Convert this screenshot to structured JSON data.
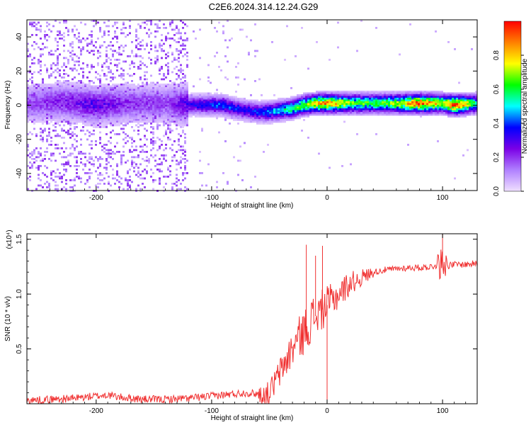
{
  "title": "C2E6.2024.314.12.24.G29",
  "chart_data": [
    {
      "type": "heatmap",
      "xlabel": "Height of straight line (km)",
      "ylabel": "Frequency (Hz)",
      "xlim": [
        -260,
        130
      ],
      "ylim": [
        -50,
        50
      ],
      "xticks": [
        -200,
        -100,
        0,
        100
      ],
      "yticks": [
        -40,
        -20,
        0,
        20,
        40
      ],
      "colorbar": {
        "label": "Normalized spectral amplitude",
        "range": [
          0,
          1
        ],
        "ticks": [
          "0.0",
          "0.2",
          "0.4",
          "0.6",
          "0.8"
        ],
        "colors": [
          "#f0e0ff",
          "#b080ff",
          "#7a00e6",
          "#0000ff",
          "#00ffff",
          "#00ff00",
          "#ffff00",
          "#ff8000",
          "#ff0000"
        ]
      },
      "ridge": {
        "x": [
          -255,
          -230,
          -200,
          -170,
          -140,
          -120,
          -110,
          -100,
          -90,
          -80,
          -70,
          -60,
          -50,
          -40,
          -30,
          -20,
          -10,
          0,
          20,
          40,
          60,
          80,
          100,
          110,
          130
        ],
        "y": [
          1,
          2,
          0,
          1,
          1,
          0,
          0,
          0,
          0,
          -2,
          -3,
          -4,
          -4,
          -3,
          -2,
          0,
          1,
          1,
          1,
          1,
          1,
          1,
          1,
          0,
          1
        ],
        "amplitude": [
          0.18,
          0.22,
          0.28,
          0.2,
          0.18,
          0.3,
          0.32,
          0.35,
          0.38,
          0.35,
          0.33,
          0.35,
          0.4,
          0.45,
          0.55,
          0.6,
          0.75,
          0.78,
          0.62,
          0.55,
          0.62,
          0.85,
          0.65,
          0.9,
          0.5
        ]
      }
    },
    {
      "type": "line",
      "xlabel": "Height of straight line (km)",
      "ylabel": "SNR (10 * v/v)",
      "y_multiplier": "(x10⁴)",
      "xlim": [
        -260,
        130
      ],
      "ylim": [
        0,
        1.55
      ],
      "xticks": [
        -200,
        -100,
        0,
        100
      ],
      "yticks": [
        0.5,
        1.0,
        1.5
      ],
      "ytick_labels": [
        "0.5",
        "1.0",
        "1.5"
      ],
      "color": "#f03030",
      "series": [
        {
          "x": [
            -260,
            -240,
            -220,
            -200,
            -190,
            -180,
            -160,
            -140,
            -120,
            -110,
            -100,
            -90,
            -80,
            -70,
            -60,
            -55,
            -50,
            -45,
            -40,
            -35,
            -30,
            -25,
            -20,
            -15,
            -10,
            -5,
            0,
            5,
            10,
            15,
            20,
            30,
            40,
            50,
            60,
            70,
            80,
            90,
            95,
            100,
            105,
            110,
            120,
            130
          ],
          "y": [
            0.03,
            0.04,
            0.05,
            0.07,
            0.08,
            0.06,
            0.04,
            0.04,
            0.05,
            0.06,
            0.07,
            0.08,
            0.09,
            0.1,
            0.09,
            0.08,
            0.1,
            0.2,
            0.3,
            0.4,
            0.5,
            0.6,
            0.65,
            0.75,
            0.8,
            0.85,
            0.9,
            0.95,
            1.0,
            1.05,
            1.1,
            1.15,
            1.2,
            1.22,
            1.23,
            1.24,
            1.24,
            1.25,
            1.26,
            1.3,
            1.26,
            1.27,
            1.27,
            1.28
          ],
          "spikes": [
            {
              "x": -18,
              "y": 1.45
            },
            {
              "x": -10,
              "y": 1.35
            },
            {
              "x": -4,
              "y": 1.44
            },
            {
              "x": 0,
              "y": 0.02
            },
            {
              "x": 100,
              "y": 1.55
            }
          ]
        }
      ]
    }
  ]
}
